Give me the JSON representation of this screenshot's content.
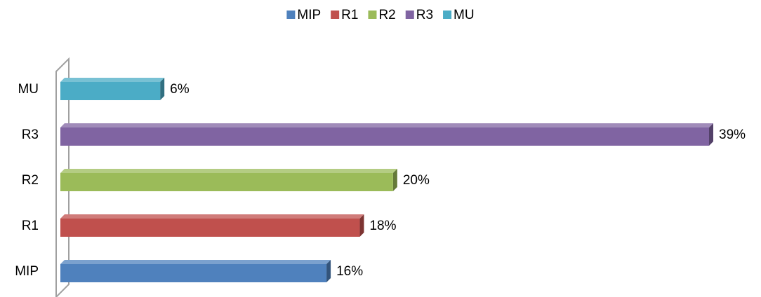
{
  "chart_data": {
    "type": "bar",
    "orientation": "horizontal",
    "three_d": true,
    "categories": [
      "MIP",
      "R1",
      "R2",
      "R3",
      "MU"
    ],
    "values": [
      16,
      18,
      20,
      39,
      6
    ],
    "value_labels": [
      "16%",
      "18%",
      "20%",
      "39%",
      "6%"
    ],
    "colors": [
      "#4f81bd",
      "#c0504d",
      "#9bbb59",
      "#8064a2",
      "#4bacc6"
    ],
    "legend": "top"
  }
}
